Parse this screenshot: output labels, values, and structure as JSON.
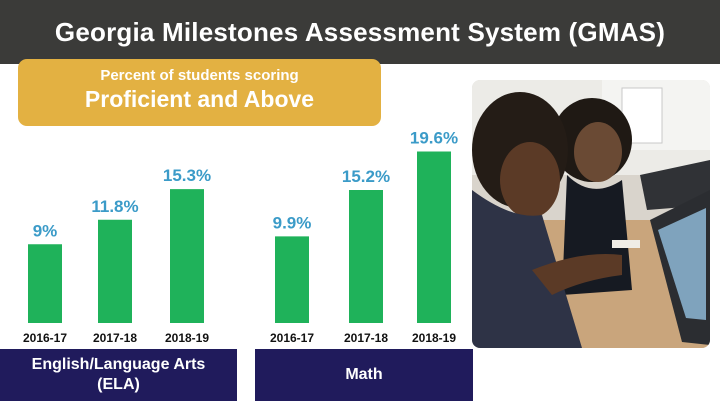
{
  "title": "Georgia Milestones Assessment System (GMAS)",
  "subtitle": {
    "line1": "Percent of students scoring",
    "line2": "Proficient and Above"
  },
  "colors": {
    "title_bar": "#3b3b39",
    "subtitle_box": "#e3b142",
    "bar": "#1fb25a",
    "value_label": "#3b9bc8",
    "subject_box": "#201b5c"
  },
  "photo": {
    "icon": "students-photo"
  },
  "chart_data": [
    {
      "type": "bar",
      "subject": "English/Language Arts (ELA)",
      "subject_lines": [
        "English/Language Arts",
        "(ELA)"
      ],
      "categories": [
        "2016-17",
        "2017-18",
        "2018-19"
      ],
      "values": [
        9,
        11.8,
        15.3
      ],
      "value_labels": [
        "9%",
        "11.8%",
        "15.3%"
      ],
      "ylim": [
        0,
        25
      ],
      "grid": false
    },
    {
      "type": "bar",
      "subject": "Math",
      "subject_lines": [
        "Math"
      ],
      "categories": [
        "2016-17",
        "2017-18",
        "2018-19"
      ],
      "values": [
        9.9,
        15.2,
        19.6
      ],
      "value_labels": [
        "9.9%",
        "15.2%",
        "19.6%"
      ],
      "ylim": [
        0,
        25
      ],
      "grid": false
    }
  ]
}
